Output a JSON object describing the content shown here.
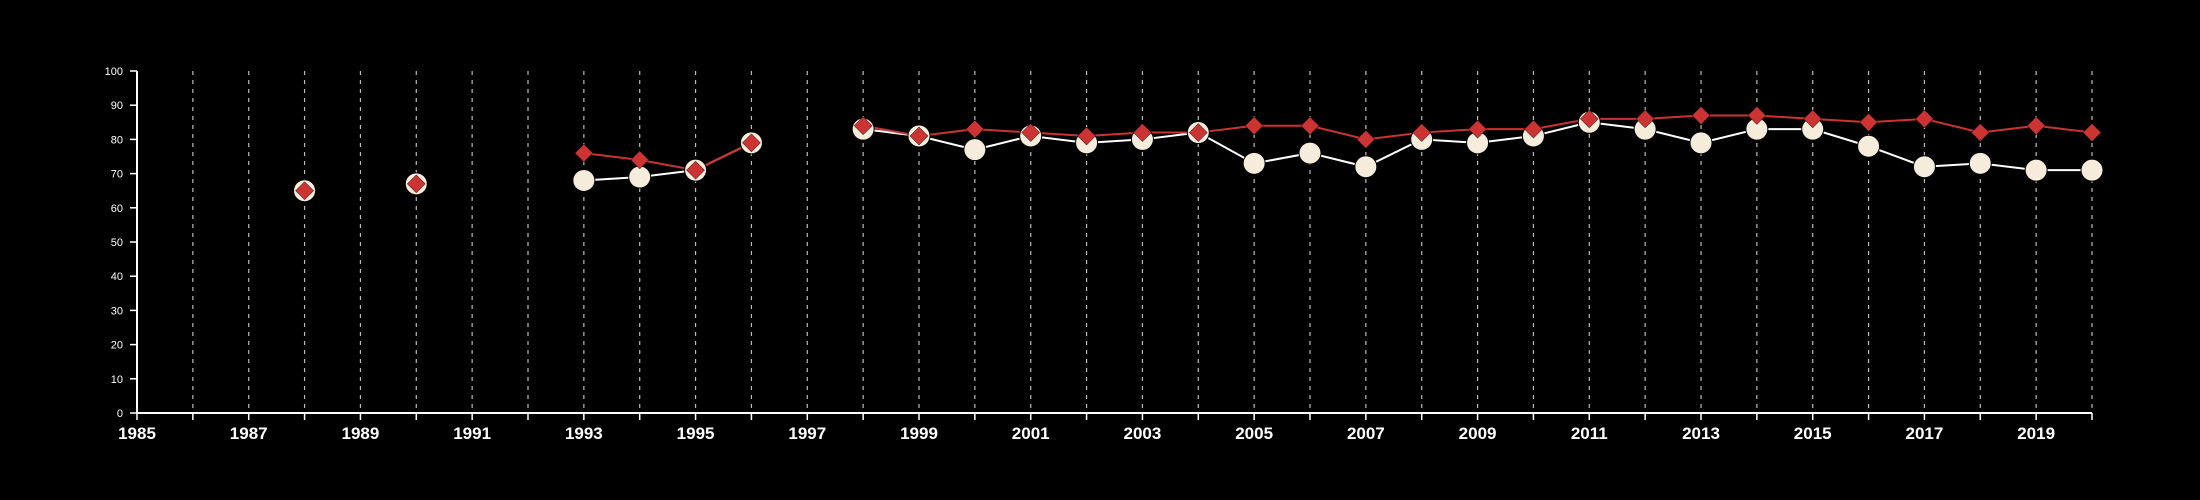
{
  "chart_data": {
    "type": "line",
    "title": "",
    "xlabel": "",
    "ylabel": "",
    "xlim": [
      1985,
      2020
    ],
    "ylim": [
      0,
      100
    ],
    "x_ticks": [
      1985,
      1987,
      1989,
      1991,
      1993,
      1995,
      1997,
      1999,
      2001,
      2003,
      2005,
      2007,
      2009,
      2011,
      2013,
      2015,
      2017,
      2019
    ],
    "y_ticks": [
      0,
      10,
      20,
      30,
      40,
      50,
      60,
      70,
      80,
      90,
      100
    ],
    "grid": "vertical dashed lines at each year",
    "background": "#000000",
    "series": [
      {
        "marker": "circle",
        "color": "#f5ecdc",
        "line_color": "#ffffff",
        "x": [
          1988,
          1990,
          1993,
          1994,
          1995,
          1996,
          1998,
          1999,
          2000,
          2001,
          2002,
          2003,
          2004,
          2005,
          2006,
          2007,
          2008,
          2009,
          2010,
          2011,
          2012,
          2013,
          2014,
          2015,
          2016,
          2017,
          2018,
          2019,
          2020
        ],
        "values": [
          65,
          67,
          68,
          69,
          71,
          79,
          83,
          81,
          77,
          81,
          79,
          80,
          82,
          73,
          76,
          72,
          80,
          79,
          81,
          85,
          83,
          79,
          83,
          83,
          78,
          72,
          73,
          71,
          71
        ]
      },
      {
        "marker": "diamond",
        "color": "#cc3333",
        "line_color": "#cc3333",
        "x": [
          1988,
          1990,
          1993,
          1994,
          1995,
          1996,
          1998,
          1999,
          2000,
          2001,
          2002,
          2003,
          2004,
          2005,
          2006,
          2007,
          2008,
          2009,
          2010,
          2011,
          2012,
          2013,
          2014,
          2015,
          2016,
          2017,
          2018,
          2019,
          2020
        ],
        "values": [
          65,
          67,
          76,
          74,
          71,
          79,
          84,
          81,
          83,
          82,
          81,
          82,
          82,
          84,
          84,
          80,
          82,
          83,
          83,
          86,
          86,
          87,
          87,
          86,
          85,
          86,
          82,
          84,
          82
        ]
      }
    ]
  }
}
